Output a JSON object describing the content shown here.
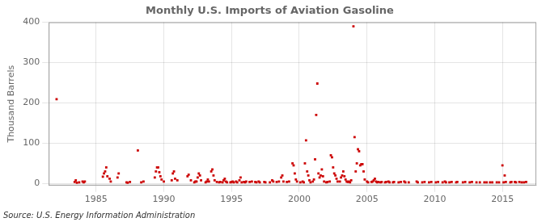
{
  "chart_data": {
    "type": "scatter",
    "title": "Monthly U.S. Imports of Aviation Gasoline",
    "ylabel": "Thousand Barrels",
    "annotation": "Source: U.S. Energy Information Administration",
    "color": "#CC0000",
    "marker": "square",
    "grid": true,
    "xlim": [
      1981.5,
      2017.5
    ],
    "xticks": [
      1985,
      1990,
      1995,
      2000,
      2005,
      2010,
      2015
    ],
    "ylim": [
      -5,
      400
    ],
    "yticks": [
      0,
      100,
      200,
      300,
      400
    ],
    "x": [
      1982.083,
      1983.417,
      1983.5,
      1983.583,
      1983.75,
      1984.0,
      1984.083,
      1984.167,
      1985.5,
      1985.583,
      1985.667,
      1985.75,
      1985.833,
      1986.0,
      1986.083,
      1986.583,
      1986.667,
      1987.25,
      1987.333,
      1987.5,
      1988.083,
      1988.333,
      1988.5,
      1989.333,
      1989.417,
      1989.5,
      1989.583,
      1989.667,
      1989.75,
      1989.833,
      1990.0,
      1990.583,
      1990.667,
      1990.75,
      1990.833,
      1991.0,
      1991.75,
      1991.833,
      1992.0,
      1992.25,
      1992.333,
      1992.417,
      1992.5,
      1992.583,
      1992.667,
      1992.75,
      1993.083,
      1993.167,
      1993.25,
      1993.333,
      1993.5,
      1993.583,
      1993.667,
      1993.75,
      1993.917,
      1994.083,
      1994.167,
      1994.333,
      1994.417,
      1994.5,
      1994.583,
      1994.667,
      1994.917,
      1995.0,
      1995.083,
      1995.167,
      1995.333,
      1995.417,
      1995.583,
      1995.667,
      1995.75,
      1995.917,
      1996.0,
      1996.083,
      1996.333,
      1996.5,
      1996.75,
      1996.833,
      1997.0,
      1997.083,
      1997.417,
      1997.5,
      1997.833,
      1998.0,
      1998.083,
      1998.333,
      1998.5,
      1998.667,
      1998.75,
      1998.833,
      1999.083,
      1999.25,
      1999.5,
      1999.583,
      1999.667,
      1999.75,
      1999.833,
      2000.083,
      2000.25,
      2000.333,
      2000.417,
      2000.5,
      2000.583,
      2000.667,
      2000.75,
      2000.833,
      2001.0,
      2001.083,
      2001.167,
      2001.25,
      2001.333,
      2001.417,
      2001.5,
      2001.583,
      2001.667,
      2001.75,
      2001.833,
      2002.0,
      2002.083,
      2002.25,
      2002.333,
      2002.417,
      2002.5,
      2002.583,
      2002.667,
      2002.75,
      2002.833,
      2003.0,
      2003.083,
      2003.167,
      2003.25,
      2003.333,
      2003.417,
      2003.5,
      2003.583,
      2003.667,
      2003.75,
      2003.833,
      2004.0,
      2004.083,
      2004.167,
      2004.25,
      2004.333,
      2004.417,
      2004.5,
      2004.583,
      2004.667,
      2004.75,
      2004.833,
      2005.0,
      2005.083,
      2005.333,
      2005.417,
      2005.5,
      2005.583,
      2005.667,
      2005.75,
      2005.833,
      2006.0,
      2006.083,
      2006.333,
      2006.417,
      2006.583,
      2006.667,
      2006.917,
      2007.0,
      2007.333,
      2007.5,
      2007.75,
      2007.833,
      2008.083,
      2008.667,
      2008.75,
      2009.083,
      2009.25,
      2009.583,
      2009.75,
      2010.083,
      2010.25,
      2010.583,
      2010.75,
      2010.833,
      2011.083,
      2011.25,
      2011.583,
      2011.667,
      2012.083,
      2012.25,
      2012.583,
      2012.75,
      2013.083,
      2013.333,
      2013.667,
      2013.833,
      2014.083,
      2014.25,
      2014.583,
      2014.75,
      2015.0,
      2015.083,
      2015.167,
      2015.25,
      2015.583,
      2015.667,
      2015.917,
      2016.0,
      2016.25,
      2016.417,
      2016.583,
      2016.75
    ],
    "values": [
      209,
      4,
      8,
      2,
      3,
      5,
      3,
      5,
      17,
      25,
      30,
      40,
      18,
      12,
      5,
      15,
      25,
      3,
      2,
      4,
      82,
      3,
      5,
      15,
      30,
      40,
      40,
      28,
      18,
      10,
      5,
      8,
      25,
      30,
      12,
      8,
      18,
      22,
      8,
      3,
      5,
      5,
      15,
      25,
      20,
      8,
      3,
      5,
      10,
      5,
      30,
      35,
      20,
      8,
      4,
      3,
      4,
      3,
      8,
      12,
      5,
      3,
      3,
      4,
      5,
      3,
      5,
      3,
      8,
      15,
      3,
      4,
      3,
      5,
      4,
      5,
      4,
      3,
      5,
      3,
      4,
      3,
      3,
      8,
      5,
      4,
      5,
      15,
      20,
      5,
      4,
      5,
      50,
      45,
      25,
      10,
      5,
      3,
      5,
      3,
      50,
      107,
      30,
      20,
      8,
      3,
      5,
      10,
      60,
      170,
      248,
      25,
      15,
      20,
      35,
      18,
      5,
      3,
      4,
      5,
      70,
      65,
      40,
      25,
      20,
      12,
      5,
      5,
      15,
      20,
      30,
      18,
      10,
      5,
      4,
      5,
      3,
      8,
      390,
      115,
      30,
      50,
      85,
      80,
      45,
      48,
      48,
      30,
      10,
      5,
      3,
      4,
      5,
      8,
      12,
      5,
      3,
      4,
      3,
      4,
      3,
      4,
      5,
      3,
      3,
      4,
      3,
      4,
      5,
      3,
      3,
      5,
      3,
      3,
      4,
      3,
      4,
      3,
      4,
      3,
      5,
      3,
      3,
      4,
      3,
      4,
      3,
      4,
      3,
      4,
      3,
      3,
      3,
      3,
      3,
      3,
      3,
      3,
      45,
      3,
      20,
      4,
      3,
      4,
      4,
      3,
      4,
      3,
      3,
      4
    ]
  }
}
